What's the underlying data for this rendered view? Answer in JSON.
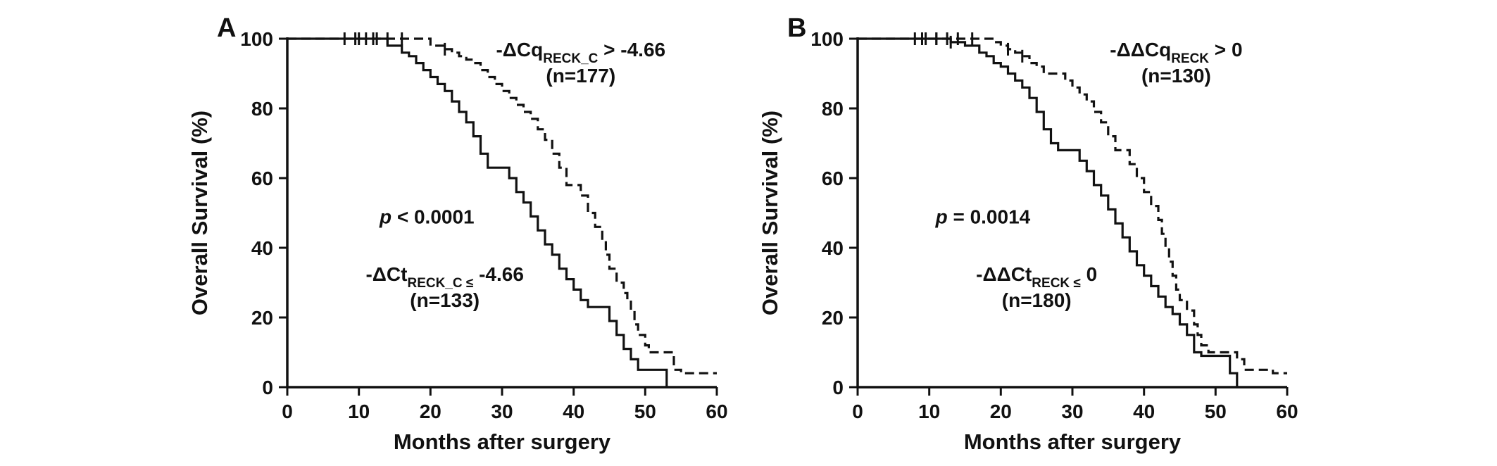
{
  "figure": {
    "background": "#ffffff",
    "ink_color": "#111111",
    "description": "Kaplan-Meier overall survival curves, two panels A and B"
  },
  "chart_data": [
    {
      "type": "line",
      "subtype": "kaplan-meier-step",
      "panel_label": "A",
      "xlabel": "Months after surgery",
      "ylabel": "Overall Survival (%)",
      "xlim": [
        0,
        60
      ],
      "ylim": [
        0,
        100
      ],
      "xticks": [
        0,
        10,
        20,
        30,
        40,
        50,
        60
      ],
      "yticks": [
        0,
        20,
        40,
        60,
        80,
        100
      ],
      "grid": false,
      "legend_position": "inline-annotations",
      "series": [
        {
          "name": "-dCq_RECK_C > -4.66 (n=177)",
          "style": "dashed",
          "points": [
            [
              0,
              100
            ],
            [
              20,
              98
            ],
            [
              22,
              97
            ],
            [
              23,
              96
            ],
            [
              24,
              95
            ],
            [
              25,
              94
            ],
            [
              26,
              93
            ],
            [
              27,
              91
            ],
            [
              28,
              89
            ],
            [
              29,
              87
            ],
            [
              30,
              85
            ],
            [
              31,
              83
            ],
            [
              32,
              81
            ],
            [
              33,
              79
            ],
            [
              34,
              77
            ],
            [
              35,
              74
            ],
            [
              36,
              71
            ],
            [
              37,
              67
            ],
            [
              38,
              63
            ],
            [
              39,
              58
            ],
            [
              41,
              55
            ],
            [
              42,
              50
            ],
            [
              43,
              46
            ],
            [
              44,
              42
            ],
            [
              44.5,
              38
            ],
            [
              45,
              34
            ],
            [
              46,
              30
            ],
            [
              47,
              27
            ],
            [
              47.5,
              25
            ],
            [
              48,
              22
            ],
            [
              48.5,
              18
            ],
            [
              49,
              15
            ],
            [
              50,
              12
            ],
            [
              50.5,
              10
            ],
            [
              54,
              5
            ],
            [
              55,
              4
            ],
            [
              60,
              4
            ]
          ],
          "censor_marks": [
            [
              8,
              100
            ],
            [
              9.5,
              100
            ],
            [
              11,
              100
            ],
            [
              12.5,
              100
            ],
            [
              14,
              100
            ],
            [
              16,
              100
            ],
            [
              22,
              97
            ]
          ]
        },
        {
          "name": "-dCt_RECK_C <= -4.66 (n=133)",
          "style": "solid",
          "points": [
            [
              0,
              100
            ],
            [
              14,
              98
            ],
            [
              16,
              96
            ],
            [
              17,
              95
            ],
            [
              18,
              93
            ],
            [
              19,
              91
            ],
            [
              20,
              89
            ],
            [
              21,
              87
            ],
            [
              22,
              85
            ],
            [
              23,
              82
            ],
            [
              24,
              79
            ],
            [
              25,
              76
            ],
            [
              26,
              72
            ],
            [
              27,
              67
            ],
            [
              28,
              63
            ],
            [
              31,
              60
            ],
            [
              32,
              56
            ],
            [
              33,
              53
            ],
            [
              34,
              49
            ],
            [
              35,
              45
            ],
            [
              36,
              41
            ],
            [
              37,
              38
            ],
            [
              38,
              34
            ],
            [
              39,
              31
            ],
            [
              40,
              28
            ],
            [
              41,
              25
            ],
            [
              42,
              23
            ],
            [
              45,
              19
            ],
            [
              46,
              15
            ],
            [
              47,
              11
            ],
            [
              48,
              8
            ],
            [
              49,
              5
            ],
            [
              53,
              0
            ]
          ],
          "censor_marks": [
            [
              10,
              100
            ],
            [
              12,
              100
            ]
          ]
        }
      ],
      "annotations": [
        {
          "id": "group-high-label",
          "lines": [
            {
              "y": 95,
              "parts": [
                {
                  "t": "-ΔCq"
                },
                {
                  "t": "RECK_C",
                  "sub": true
                },
                {
                  "t": " > -4.66"
                }
              ]
            },
            {
              "y": 87.5,
              "parts": [
                {
                  "t": "(n=177)"
                }
              ]
            }
          ],
          "x": 41
        },
        {
          "id": "p-value",
          "lines": [
            {
              "y": 47,
              "parts": [
                {
                  "t": "p",
                  "italic": true
                },
                {
                  "t": " < 0.0001"
                }
              ]
            }
          ],
          "x": 19.5
        },
        {
          "id": "group-low-label",
          "lines": [
            {
              "y": 30.5,
              "parts": [
                {
                  "t": "-ΔCt"
                },
                {
                  "t": "RECK_C ≤",
                  "sub": true
                },
                {
                  "t": " -4.66"
                }
              ]
            },
            {
              "y": 23,
              "parts": [
                {
                  "t": "(n=133)"
                }
              ]
            }
          ],
          "x": 22
        }
      ]
    },
    {
      "type": "line",
      "subtype": "kaplan-meier-step",
      "panel_label": "B",
      "xlabel": "Months after surgery",
      "ylabel": "Overall Survival (%)",
      "xlim": [
        0,
        60
      ],
      "ylim": [
        0,
        100
      ],
      "xticks": [
        0,
        10,
        20,
        30,
        40,
        50,
        60
      ],
      "yticks": [
        0,
        20,
        40,
        60,
        80,
        100
      ],
      "grid": false,
      "legend_position": "inline-annotations",
      "series": [
        {
          "name": "-ddCq_RECK > 0 (n=130)",
          "style": "dashed",
          "points": [
            [
              0,
              100
            ],
            [
              19,
              99
            ],
            [
              20,
              98
            ],
            [
              21,
              97
            ],
            [
              22,
              96
            ],
            [
              23,
              95
            ],
            [
              24,
              93
            ],
            [
              25,
              92
            ],
            [
              26,
              90
            ],
            [
              29,
              88
            ],
            [
              30,
              86
            ],
            [
              31,
              84
            ],
            [
              32,
              82
            ],
            [
              33,
              79
            ],
            [
              34,
              76
            ],
            [
              35,
              72
            ],
            [
              36,
              68
            ],
            [
              38,
              64
            ],
            [
              39,
              60
            ],
            [
              40,
              56
            ],
            [
              41,
              52
            ],
            [
              42,
              48
            ],
            [
              42.5,
              44
            ],
            [
              43,
              40
            ],
            [
              43.5,
              36
            ],
            [
              44,
              32
            ],
            [
              44.5,
              28
            ],
            [
              45,
              25
            ],
            [
              46,
              22
            ],
            [
              47,
              18
            ],
            [
              47.5,
              15
            ],
            [
              48,
              12
            ],
            [
              49,
              10
            ],
            [
              53,
              8
            ],
            [
              54,
              5
            ],
            [
              58,
              4
            ],
            [
              60,
              4
            ]
          ],
          "censor_marks": [
            [
              8,
              100
            ],
            [
              9.5,
              100
            ],
            [
              11,
              100
            ],
            [
              12.5,
              100
            ],
            [
              14,
              100
            ],
            [
              16,
              100
            ],
            [
              21,
              97
            ],
            [
              23,
              95
            ]
          ]
        },
        {
          "name": "-ddCt_RECK <= 0 (n=180)",
          "style": "solid",
          "points": [
            [
              0,
              100
            ],
            [
              13,
              99
            ],
            [
              15,
              98
            ],
            [
              17,
              96
            ],
            [
              18,
              95
            ],
            [
              19,
              93
            ],
            [
              20,
              92
            ],
            [
              21,
              90
            ],
            [
              22,
              88
            ],
            [
              23,
              86
            ],
            [
              24,
              83
            ],
            [
              25,
              79
            ],
            [
              26,
              74
            ],
            [
              27,
              70
            ],
            [
              28,
              68
            ],
            [
              31,
              65
            ],
            [
              32,
              62
            ],
            [
              33,
              58
            ],
            [
              34,
              55
            ],
            [
              35,
              51
            ],
            [
              36,
              47
            ],
            [
              37,
              43
            ],
            [
              38,
              39
            ],
            [
              39,
              35
            ],
            [
              40,
              32
            ],
            [
              41,
              29
            ],
            [
              42,
              26
            ],
            [
              43,
              23
            ],
            [
              44,
              21
            ],
            [
              45,
              18
            ],
            [
              46,
              15
            ],
            [
              47,
              10
            ],
            [
              48,
              9
            ],
            [
              52,
              4
            ],
            [
              53,
              0
            ]
          ],
          "censor_marks": [
            [
              9,
              100
            ],
            [
              11,
              100
            ],
            [
              13,
              99
            ]
          ]
        }
      ],
      "annotations": [
        {
          "id": "group-high-label",
          "lines": [
            {
              "y": 95,
              "parts": [
                {
                  "t": "-ΔΔCq"
                },
                {
                  "t": "RECK",
                  "sub": true
                },
                {
                  "t": " > 0"
                }
              ]
            },
            {
              "y": 87.5,
              "parts": [
                {
                  "t": "(n=130)"
                }
              ]
            }
          ],
          "x": 44.5
        },
        {
          "id": "p-value",
          "lines": [
            {
              "y": 47,
              "parts": [
                {
                  "t": "p",
                  "italic": true
                },
                {
                  "t": " = 0.0014"
                }
              ]
            }
          ],
          "x": 17.5
        },
        {
          "id": "group-low-label",
          "lines": [
            {
              "y": 30.5,
              "parts": [
                {
                  "t": "-ΔΔCt"
                },
                {
                  "t": "RECK ≤",
                  "sub": true
                },
                {
                  "t": " 0"
                }
              ]
            },
            {
              "y": 23,
              "parts": [
                {
                  "t": "(n=180)"
                }
              ]
            }
          ],
          "x": 25
        }
      ]
    }
  ]
}
